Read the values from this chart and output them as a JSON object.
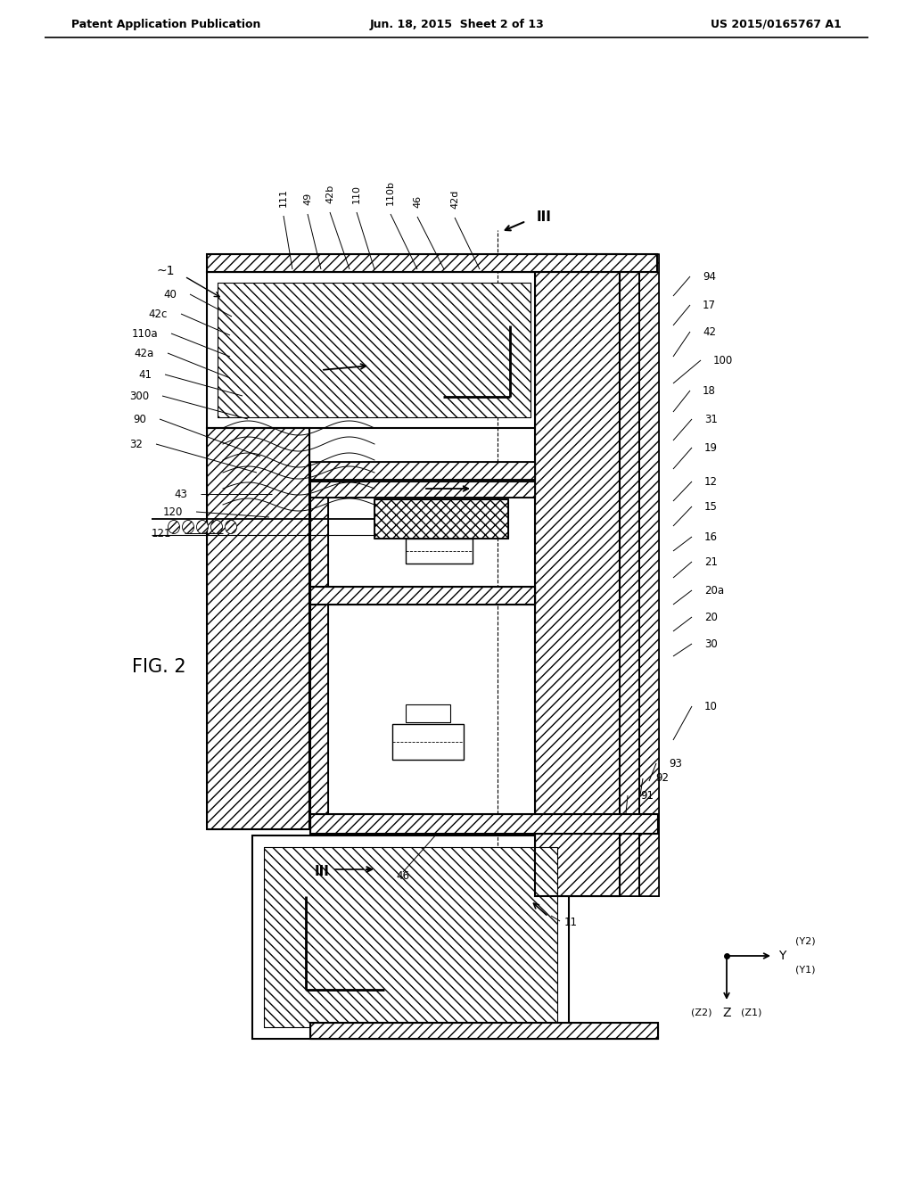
{
  "bg_color": "#ffffff",
  "line_color": "#000000",
  "header_left": "Patent Application Publication",
  "header_center": "Jun. 18, 2015  Sheet 2 of 13",
  "header_right": "US 2015/0165767 A1",
  "fig_label": "FIG. 2",
  "top_labels": [
    "111",
    "49",
    "42b",
    "110",
    "110b",
    "46",
    "42d"
  ],
  "left_labels": [
    "1",
    "40",
    "42c",
    "110a",
    "42a",
    "41",
    "300",
    "90",
    "32",
    "43",
    "120",
    "121"
  ],
  "right_labels": [
    "94",
    "17",
    "42",
    "100",
    "18",
    "31",
    "19",
    "12",
    "15",
    "16",
    "21",
    "20a",
    "20",
    "30",
    "10",
    "93",
    "92",
    "91"
  ],
  "bottom_labels": [
    "46",
    "11"
  ]
}
